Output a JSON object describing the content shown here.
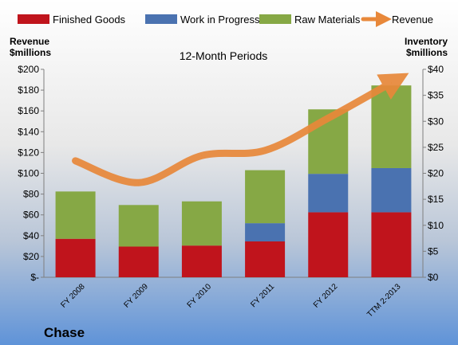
{
  "chart_data": {
    "type": "bar",
    "stacked": true,
    "subtitle": "12-Month Periods",
    "company": "Chase",
    "categories": [
      "FY 2008",
      "FY 2009",
      "FY 2010",
      "FY 2011",
      "FY 2012",
      "TTM 2-2013"
    ],
    "y_left": {
      "label_line1": "Revenue",
      "label_line2": "$millions",
      "range": [
        0,
        200
      ],
      "ticks": [
        {
          "value": 200,
          "label": "$200"
        },
        {
          "value": 180,
          "label": "$180"
        },
        {
          "value": 160,
          "label": "$160"
        },
        {
          "value": 140,
          "label": "$140"
        },
        {
          "value": 120,
          "label": "$120"
        },
        {
          "value": 100,
          "label": "$100"
        },
        {
          "value": 80,
          "label": "$80"
        },
        {
          "value": 60,
          "label": "$60"
        },
        {
          "value": 40,
          "label": "$40"
        },
        {
          "value": 20,
          "label": "$20"
        },
        {
          "value": 0,
          "label": "$-"
        }
      ]
    },
    "y_right": {
      "label_line1": "Inventory",
      "label_line2": "$millions",
      "range": [
        0,
        40
      ],
      "ticks": [
        {
          "value": 40,
          "label": "$40"
        },
        {
          "value": 35,
          "label": "$35"
        },
        {
          "value": 30,
          "label": "$30"
        },
        {
          "value": 25,
          "label": "$25"
        },
        {
          "value": 20,
          "label": "$20"
        },
        {
          "value": 15,
          "label": "$15"
        },
        {
          "value": 10,
          "label": "$10"
        },
        {
          "value": 5,
          "label": "$5"
        },
        {
          "value": 0,
          "label": "$0"
        }
      ]
    },
    "series": [
      {
        "name": "Finished Goods",
        "axis": "right",
        "color": "#c0141c",
        "values": [
          7.4,
          5.9,
          6.1,
          6.9,
          12.5,
          12.5
        ]
      },
      {
        "name": "Work in Progress",
        "axis": "right",
        "color": "#4a72b0",
        "values": [
          0,
          0,
          0,
          3.5,
          7.4,
          8.5
        ]
      },
      {
        "name": "Raw Materials",
        "axis": "right",
        "color": "#86a845",
        "values": [
          9.1,
          8.0,
          8.5,
          10.2,
          12.4,
          15.9
        ]
      },
      {
        "name": "Revenue",
        "axis": "left",
        "type": "line",
        "color": "#e8883a",
        "values": [
          112,
          91,
          117,
          122,
          153,
          187
        ]
      }
    ],
    "grid": false,
    "legend_position": "top"
  }
}
